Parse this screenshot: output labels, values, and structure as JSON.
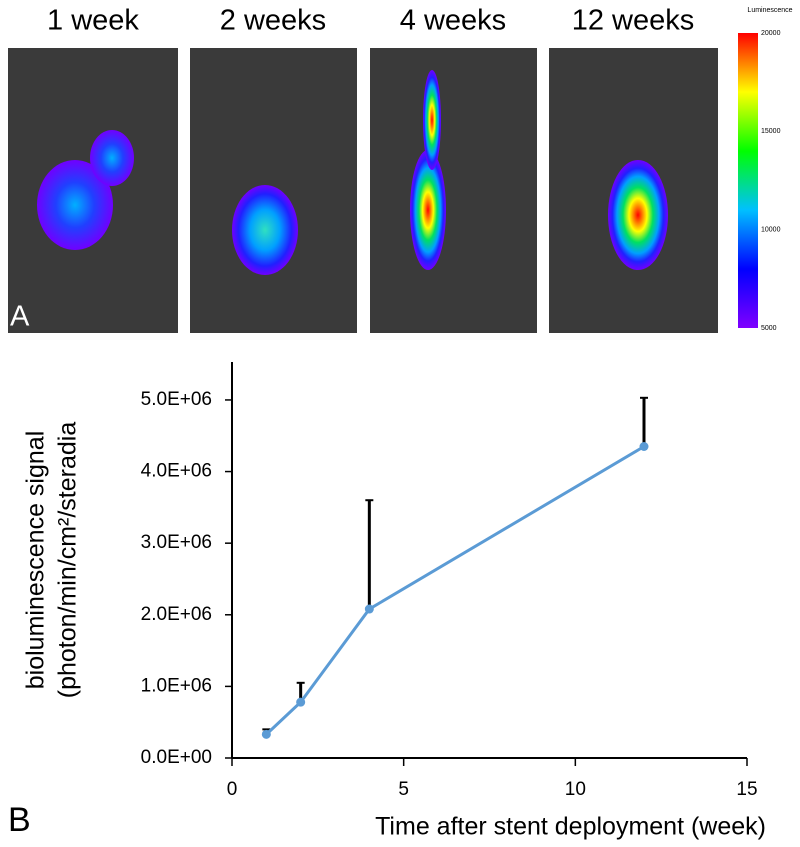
{
  "chart_data": {
    "type": "line",
    "panel_a": {
      "label": "A",
      "titles": [
        "1 week",
        "2 weeks",
        "4 weeks",
        "12 weeks"
      ]
    },
    "colorbar": {
      "title": "Luminescence",
      "range": [
        5000,
        20000
      ],
      "ticks": [
        20000,
        15000,
        10000,
        5000
      ]
    },
    "panel_label": "B",
    "ylabel": [
      "bioluminescence signal",
      "(photon/min/cm²/steradia"
    ],
    "xlabel": "Time after stent deployment (week)",
    "x": [
      1,
      2,
      4,
      12
    ],
    "series": [
      {
        "color": "#5b9bd5",
        "values": [
          330000,
          780000,
          2080000,
          4350000
        ],
        "errors": [
          70000,
          270000,
          1520000,
          680000
        ]
      }
    ],
    "xlim": [
      0,
      15
    ],
    "xticks": [
      0,
      5,
      10,
      15
    ],
    "ylim": [
      0,
      5530000
    ],
    "yticks": [
      {
        "value": 0,
        "label": "0.0E+00"
      },
      {
        "value": 1000000,
        "label": "1.0E+06"
      },
      {
        "value": 2000000,
        "label": "2.0E+06"
      },
      {
        "value": 3000000,
        "label": "3.0E+06"
      },
      {
        "value": 4000000,
        "label": "4.0E+06"
      },
      {
        "value": 5000000,
        "label": "5.0E+06"
      }
    ]
  }
}
